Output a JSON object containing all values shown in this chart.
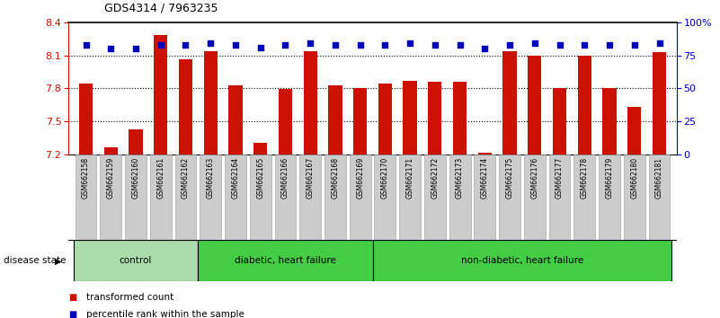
{
  "title": "GDS4314 / 7963235",
  "samples": [
    "GSM662158",
    "GSM662159",
    "GSM662160",
    "GSM662161",
    "GSM662162",
    "GSM662163",
    "GSM662164",
    "GSM662165",
    "GSM662166",
    "GSM662167",
    "GSM662168",
    "GSM662169",
    "GSM662170",
    "GSM662171",
    "GSM662172",
    "GSM662173",
    "GSM662174",
    "GSM662175",
    "GSM662176",
    "GSM662177",
    "GSM662178",
    "GSM662179",
    "GSM662180",
    "GSM662181"
  ],
  "red_values": [
    7.84,
    7.26,
    7.43,
    8.28,
    8.06,
    8.14,
    7.83,
    7.3,
    7.79,
    8.14,
    7.83,
    7.8,
    7.84,
    7.87,
    7.86,
    7.86,
    7.21,
    8.14,
    8.1,
    7.8,
    8.1,
    7.8,
    7.63,
    8.13
  ],
  "blue_values": [
    83,
    80,
    80,
    83,
    83,
    84,
    83,
    81,
    83,
    84,
    83,
    83,
    83,
    84,
    83,
    83,
    80,
    83,
    84,
    83,
    83,
    83,
    83,
    84
  ],
  "groups": [
    {
      "label": "control",
      "start": 0,
      "end": 4
    },
    {
      "label": "diabetic, heart failure",
      "start": 5,
      "end": 11
    },
    {
      "label": "non-diabetic, heart failure",
      "start": 12,
      "end": 23
    }
  ],
  "group_colors": [
    "#aaddaa",
    "#44cc44",
    "#44cc44"
  ],
  "ylim": [
    7.2,
    8.4
  ],
  "yticks_left": [
    7.2,
    7.5,
    7.8,
    8.1,
    8.4
  ],
  "yticks_right": [
    0,
    25,
    50,
    75,
    100
  ],
  "ytick_labels_right": [
    "0",
    "25",
    "50",
    "75",
    "100%"
  ],
  "bar_color": "#CC1100",
  "dot_color": "#0000BB",
  "hline_values": [
    7.5,
    7.8,
    8.1
  ],
  "tick_box_color": "#cccccc",
  "tick_box_edge": "#999999"
}
